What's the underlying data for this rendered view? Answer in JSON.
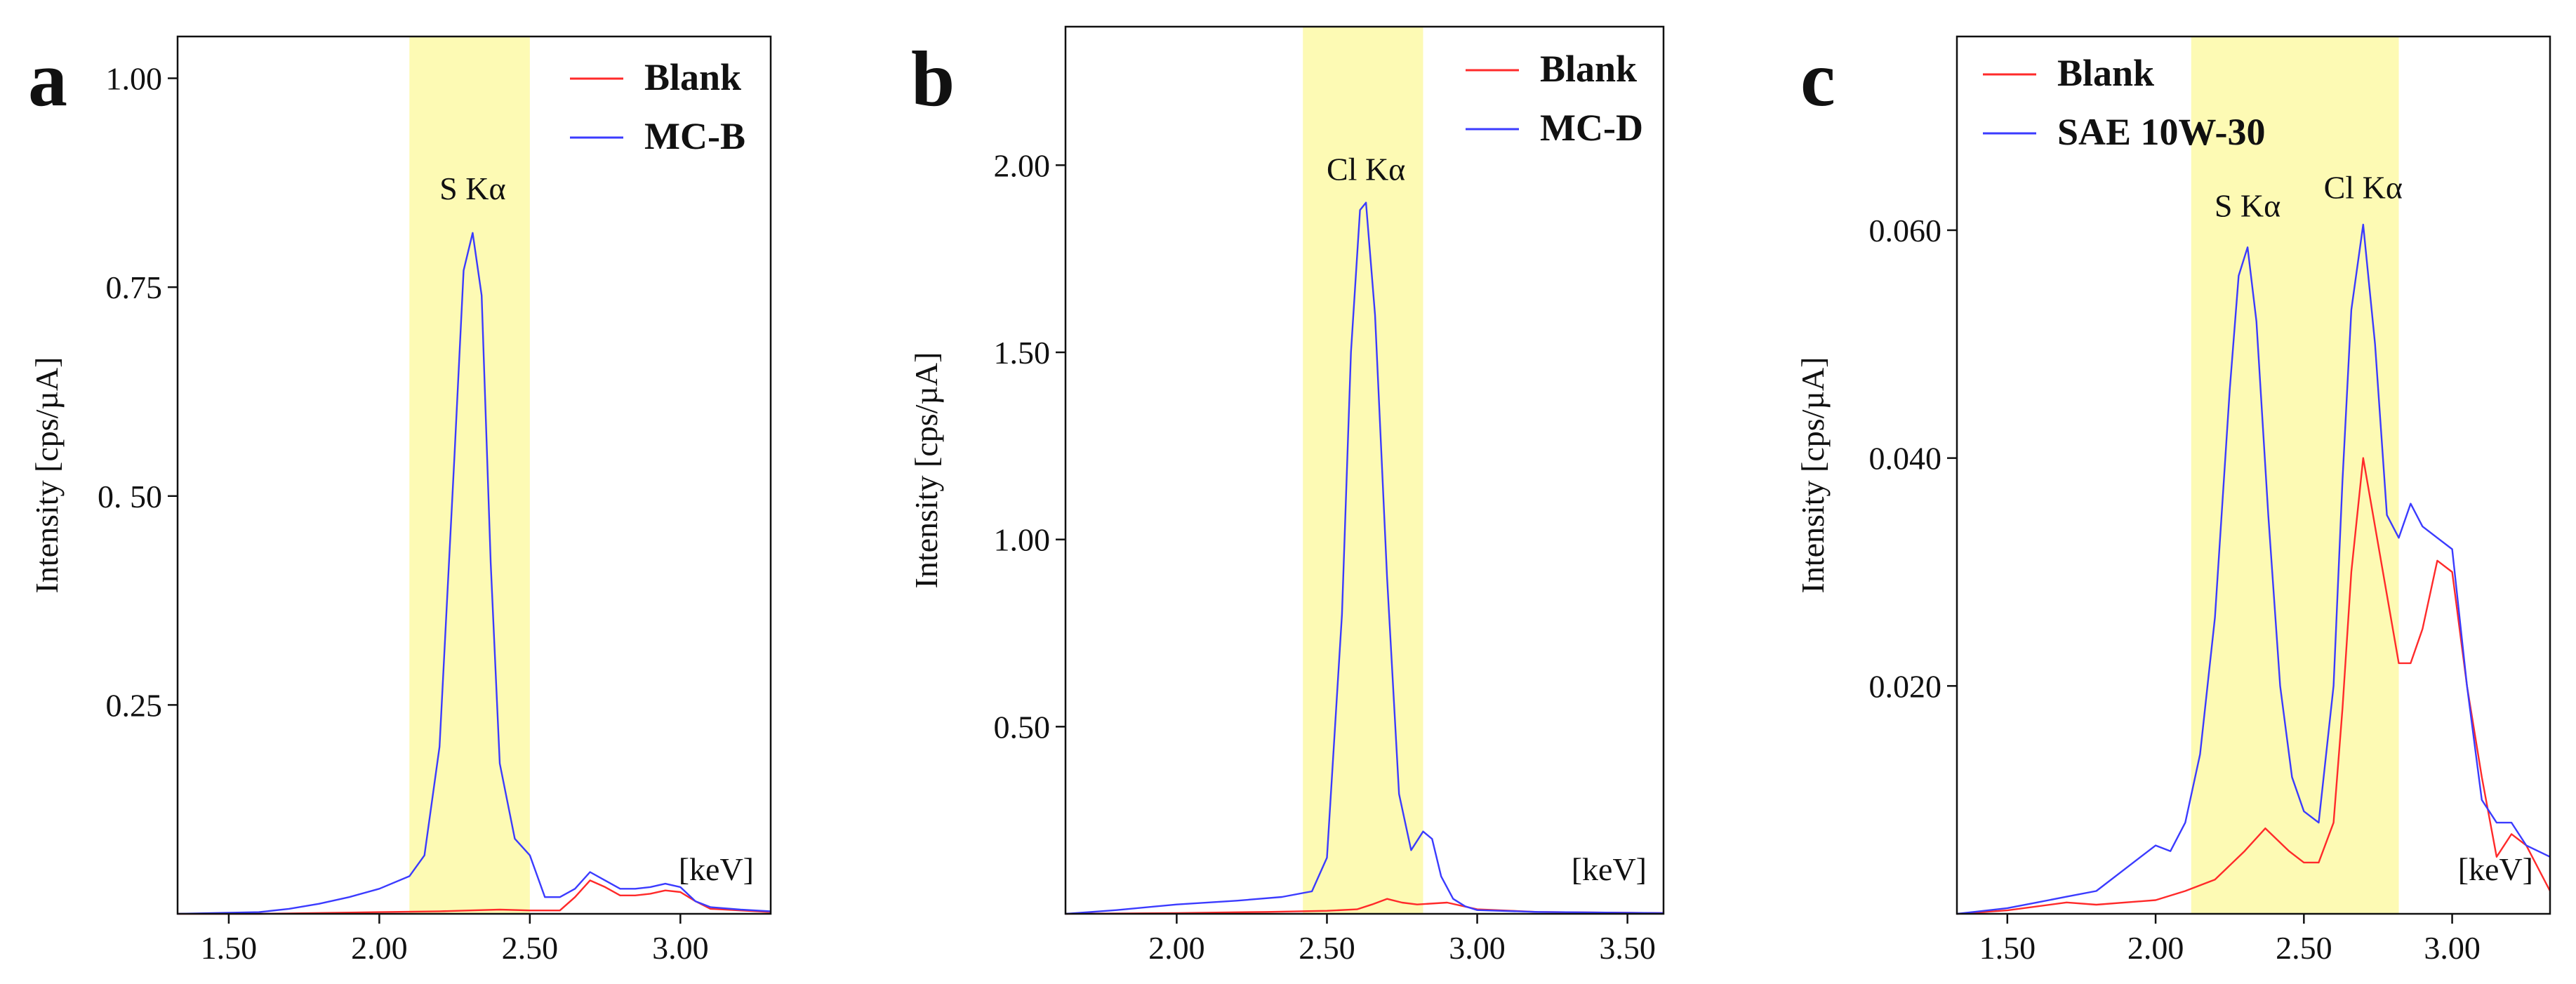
{
  "colors": {
    "blank": "#ff2a2a",
    "sample": "#3b3bff",
    "band": "#fdfab4",
    "axis": "#111111"
  },
  "chart_data": [
    {
      "type": "line",
      "panel": "a",
      "xlabel": "[keV]",
      "ylabel": "Intensity [cps/µA]",
      "xlim": [
        1.33,
        3.3
      ],
      "ylim": [
        0,
        1.05
      ],
      "xticks": [
        {
          "v": 1.5,
          "label": "1.50"
        },
        {
          "v": 2.0,
          "label": "2.00"
        },
        {
          "v": 2.5,
          "label": "2.50"
        },
        {
          "v": 3.0,
          "label": "3.00"
        }
      ],
      "yticks": [
        {
          "v": 0.25,
          "label": "0.25"
        },
        {
          "v": 0.5,
          "label": "0. 50"
        },
        {
          "v": 0.75,
          "label": "0.75"
        },
        {
          "v": 1.0,
          "label": "1.00"
        }
      ],
      "band": [
        2.1,
        2.5
      ],
      "annotations": [
        {
          "text": "S Kα",
          "x": 2.31,
          "y": 0.855
        }
      ],
      "series": [
        {
          "name": "Blank",
          "color_key": "blank",
          "x": [
            1.33,
            1.6,
            1.8,
            2.0,
            2.2,
            2.3,
            2.4,
            2.5,
            2.6,
            2.65,
            2.7,
            2.75,
            2.8,
            2.85,
            2.9,
            2.95,
            3.0,
            3.05,
            3.1,
            3.2,
            3.3
          ],
          "y": [
            0,
            0,
            0.001,
            0.002,
            0.003,
            0.004,
            0.005,
            0.004,
            0.004,
            0.02,
            0.04,
            0.032,
            0.022,
            0.022,
            0.024,
            0.028,
            0.026,
            0.015,
            0.006,
            0.004,
            0.002
          ]
        },
        {
          "name": "MC-B",
          "color_key": "sample",
          "x": [
            1.33,
            1.6,
            1.7,
            1.8,
            1.9,
            2.0,
            2.1,
            2.15,
            2.2,
            2.25,
            2.28,
            2.31,
            2.34,
            2.37,
            2.4,
            2.45,
            2.5,
            2.55,
            2.6,
            2.65,
            2.7,
            2.75,
            2.8,
            2.85,
            2.9,
            2.95,
            3.0,
            3.05,
            3.1,
            3.2,
            3.3
          ],
          "y": [
            0,
            0.002,
            0.006,
            0.012,
            0.02,
            0.03,
            0.045,
            0.07,
            0.2,
            0.55,
            0.77,
            0.815,
            0.74,
            0.42,
            0.18,
            0.09,
            0.07,
            0.02,
            0.02,
            0.03,
            0.05,
            0.04,
            0.03,
            0.03,
            0.032,
            0.036,
            0.032,
            0.015,
            0.008,
            0.005,
            0.003
          ]
        }
      ]
    },
    {
      "type": "line",
      "panel": "b",
      "xlabel": "[keV]",
      "ylabel": "Intensity [cps/µA]",
      "xlim": [
        1.63,
        3.62
      ],
      "ylim": [
        0,
        2.37
      ],
      "xticks": [
        {
          "v": 2.0,
          "label": "2.00"
        },
        {
          "v": 2.5,
          "label": "2.50"
        },
        {
          "v": 3.0,
          "label": "3.00"
        },
        {
          "v": 3.5,
          "label": "3.50"
        }
      ],
      "yticks": [
        {
          "v": 0.5,
          "label": "0.50"
        },
        {
          "v": 1.0,
          "label": "1.00"
        },
        {
          "v": 1.5,
          "label": "1.50"
        },
        {
          "v": 2.0,
          "label": "2.00"
        }
      ],
      "band": [
        2.42,
        2.82
      ],
      "annotations": [
        {
          "text": "Cl Kα",
          "x": 2.63,
          "y": 1.96
        }
      ],
      "series": [
        {
          "name": "Blank",
          "color_key": "blank",
          "x": [
            1.63,
            2.0,
            2.3,
            2.5,
            2.6,
            2.65,
            2.7,
            2.75,
            2.8,
            2.9,
            3.0,
            3.2,
            3.62
          ],
          "y": [
            0,
            0.002,
            0.005,
            0.008,
            0.012,
            0.025,
            0.04,
            0.03,
            0.025,
            0.03,
            0.012,
            0.005,
            0.002
          ]
        },
        {
          "name": "MC-D",
          "color_key": "sample",
          "x": [
            1.63,
            1.8,
            2.0,
            2.2,
            2.35,
            2.45,
            2.5,
            2.55,
            2.58,
            2.61,
            2.63,
            2.66,
            2.7,
            2.74,
            2.78,
            2.82,
            2.85,
            2.88,
            2.92,
            2.96,
            3.0,
            3.2,
            3.62
          ],
          "y": [
            0,
            0.01,
            0.025,
            0.035,
            0.045,
            0.06,
            0.15,
            0.8,
            1.5,
            1.88,
            1.9,
            1.6,
            0.9,
            0.32,
            0.17,
            0.22,
            0.2,
            0.1,
            0.04,
            0.02,
            0.01,
            0.005,
            0.002
          ]
        }
      ]
    },
    {
      "type": "line",
      "panel": "c",
      "xlabel": "[keV]",
      "ylabel": "Intensity [cps/µA]",
      "xlim": [
        1.33,
        3.33
      ],
      "ylim": [
        0,
        0.077
      ],
      "xticks": [
        {
          "v": 1.5,
          "label": "1.50"
        },
        {
          "v": 2.0,
          "label": "2.00"
        },
        {
          "v": 2.5,
          "label": "2.50"
        },
        {
          "v": 3.0,
          "label": "3.00"
        }
      ],
      "yticks": [
        {
          "v": 0.02,
          "label": "0.020"
        },
        {
          "v": 0.04,
          "label": "0.040"
        },
        {
          "v": 0.06,
          "label": "0.060"
        }
      ],
      "band": [
        2.12,
        2.82
      ],
      "annotations": [
        {
          "text": "S Kα",
          "x": 2.31,
          "y": 0.0612
        },
        {
          "text": "Cl Kα",
          "x": 2.7,
          "y": 0.0628
        }
      ],
      "series": [
        {
          "name": "Blank",
          "color_key": "blank",
          "x": [
            1.33,
            1.5,
            1.7,
            1.8,
            2.0,
            2.1,
            2.2,
            2.3,
            2.37,
            2.45,
            2.5,
            2.55,
            2.6,
            2.63,
            2.66,
            2.7,
            2.74,
            2.78,
            2.82,
            2.86,
            2.9,
            2.95,
            3.0,
            3.05,
            3.1,
            3.15,
            3.2,
            3.25,
            3.33
          ],
          "y": [
            0,
            0.0003,
            0.001,
            0.0008,
            0.0012,
            0.002,
            0.003,
            0.0055,
            0.0075,
            0.0055,
            0.0045,
            0.0045,
            0.008,
            0.018,
            0.03,
            0.04,
            0.034,
            0.028,
            0.022,
            0.022,
            0.025,
            0.031,
            0.03,
            0.02,
            0.012,
            0.005,
            0.007,
            0.006,
            0.002
          ]
        },
        {
          "name": "SAE 10W-30",
          "color_key": "sample",
          "x": [
            1.33,
            1.5,
            1.6,
            1.7,
            1.8,
            1.9,
            1.95,
            2.0,
            2.05,
            2.1,
            2.15,
            2.2,
            2.25,
            2.28,
            2.31,
            2.34,
            2.38,
            2.42,
            2.46,
            2.5,
            2.55,
            2.6,
            2.63,
            2.66,
            2.7,
            2.74,
            2.78,
            2.82,
            2.86,
            2.9,
            2.95,
            3.0,
            3.05,
            3.1,
            3.15,
            3.2,
            3.25,
            3.33
          ],
          "y": [
            0,
            0.0005,
            0.001,
            0.0015,
            0.002,
            0.004,
            0.005,
            0.006,
            0.0055,
            0.008,
            0.014,
            0.026,
            0.046,
            0.056,
            0.0585,
            0.052,
            0.035,
            0.02,
            0.012,
            0.009,
            0.008,
            0.02,
            0.038,
            0.053,
            0.0605,
            0.05,
            0.035,
            0.033,
            0.036,
            0.034,
            0.033,
            0.032,
            0.02,
            0.01,
            0.008,
            0.008,
            0.006,
            0.005
          ]
        }
      ]
    }
  ]
}
